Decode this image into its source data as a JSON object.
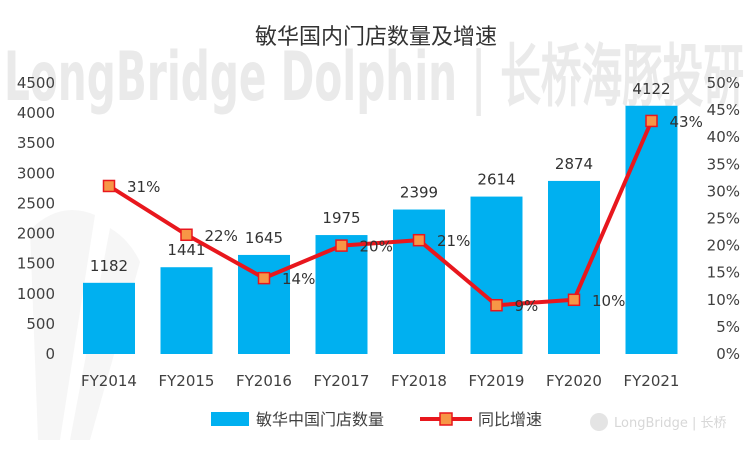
{
  "watermark": {
    "text": "LongBridge Dolphin | 长桥海豚投研",
    "logo_text": "LongBridge | 长桥"
  },
  "colors": {
    "bar": "#00B0F0",
    "line": "#E8171D",
    "marker_fill": "#F79646",
    "marker_edge": "#E8171D"
  },
  "chart_data": {
    "type": "bar",
    "title": "敏华国内门店数量及增速",
    "categories": [
      "FY2014",
      "FY2015",
      "FY2016",
      "FY2017",
      "FY2018",
      "FY2019",
      "FY2020",
      "FY2021"
    ],
    "series": [
      {
        "name": "敏华中国门店数量",
        "type": "bar",
        "axis": "left",
        "values": [
          1182,
          1441,
          1645,
          1975,
          2399,
          2614,
          2874,
          4122
        ],
        "labels": [
          "1182",
          "1441",
          "1645",
          "1975",
          "2399",
          "2614",
          "2874",
          "4122"
        ]
      },
      {
        "name": "同比增速",
        "type": "line",
        "axis": "right",
        "values": [
          31,
          22,
          14,
          20,
          21,
          9,
          10,
          43
        ],
        "labels": [
          "31%",
          "22%",
          "14%",
          "20%",
          "21%",
          "9%",
          "10%",
          "43%"
        ]
      }
    ],
    "y_left": {
      "lim": [
        0,
        4500
      ],
      "ticks": [
        "0",
        "500",
        "1000",
        "1500",
        "2000",
        "2500",
        "3000",
        "3500",
        "4000",
        "4500"
      ]
    },
    "y_right": {
      "lim": [
        0,
        50
      ],
      "ticks": [
        "0%",
        "5%",
        "10%",
        "15%",
        "20%",
        "25%",
        "30%",
        "35%",
        "40%",
        "45%",
        "50%"
      ]
    },
    "grid": false,
    "legend": "bottom"
  }
}
